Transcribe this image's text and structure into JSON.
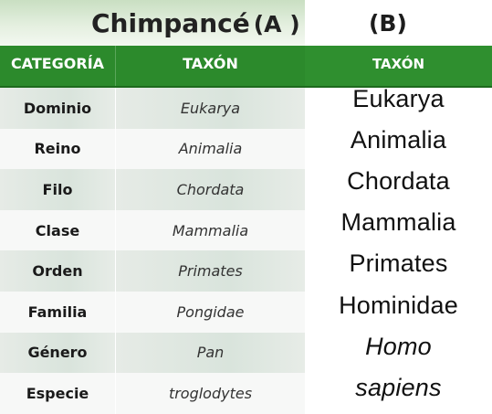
{
  "title": {
    "main": "Chimpancé",
    "tag": "(A )"
  },
  "panel_b_label": "(B)",
  "table_a": {
    "headers": [
      "CATEGORÍA",
      "TAXÓN"
    ],
    "rows": [
      {
        "categoria": "Dominio",
        "taxon": "Eukarya"
      },
      {
        "categoria": "Reino",
        "taxon": "Animalia"
      },
      {
        "categoria": "Filo",
        "taxon": "Chordata"
      },
      {
        "categoria": "Clase",
        "taxon": "Mammalia"
      },
      {
        "categoria": "Orden",
        "taxon": "Primates"
      },
      {
        "categoria": "Familia",
        "taxon": "Pongidae"
      },
      {
        "categoria": "Género",
        "taxon": "Pan"
      },
      {
        "categoria": "Especie",
        "taxon": "troglodytes"
      }
    ]
  },
  "table_b": {
    "header": "TAXÓN",
    "items": [
      "Eukarya",
      "Animalia",
      "Chordata",
      "Mammalia",
      "Primates",
      "Hominidae",
      "Homo",
      "sapiens"
    ]
  },
  "colors": {
    "header_green": "#2c8a2c",
    "title_band": "#d7e8d1",
    "row_stripe": "#dde6df"
  }
}
